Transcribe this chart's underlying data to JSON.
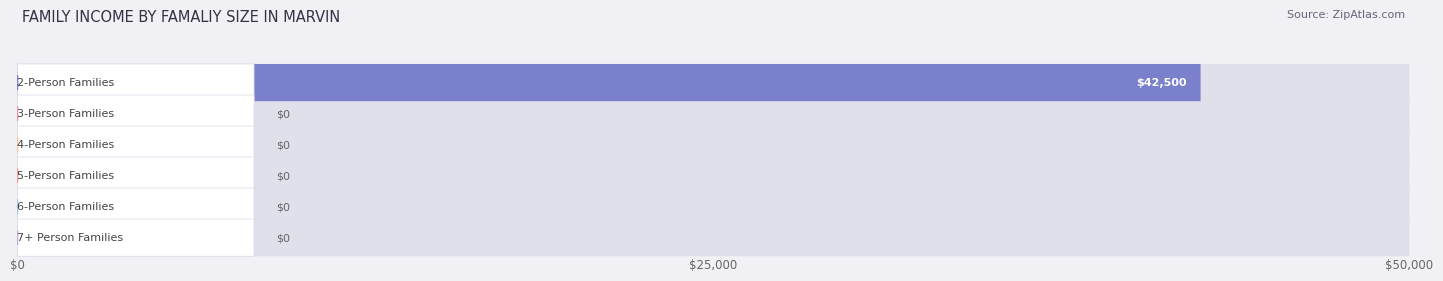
{
  "title": "FAMILY INCOME BY FAMALIY SIZE IN MARVIN",
  "source": "Source: ZipAtlas.com",
  "categories": [
    "2-Person Families",
    "3-Person Families",
    "4-Person Families",
    "5-Person Families",
    "6-Person Families",
    "7+ Person Families"
  ],
  "values": [
    42500,
    0,
    0,
    0,
    0,
    0
  ],
  "bar_colors": [
    "#7b80cc",
    "#f093a0",
    "#f5c49a",
    "#f4a0a0",
    "#a8c4e0",
    "#c4aed4"
  ],
  "label_bg_colors": [
    "#ffffff",
    "#ffffff",
    "#ffffff",
    "#ffffff",
    "#ffffff",
    "#ffffff"
  ],
  "label_left_dot_colors": [
    "#7b80cc",
    "#f093a0",
    "#f5c49a",
    "#f4a0a0",
    "#a8c4e0",
    "#c4aed4"
  ],
  "value_labels": [
    "$42,500",
    "$0",
    "$0",
    "$0",
    "$0",
    "$0"
  ],
  "xlim": [
    0,
    50000
  ],
  "xtick_labels": [
    "$0",
    "$25,000",
    "$50,000"
  ],
  "background_color": "#f0f0f5",
  "bar_bg_color": "#e0e0ea",
  "title_fontsize": 10.5,
  "source_fontsize": 8,
  "label_fontsize": 8,
  "value_fontsize": 8,
  "bar_height": 0.6
}
